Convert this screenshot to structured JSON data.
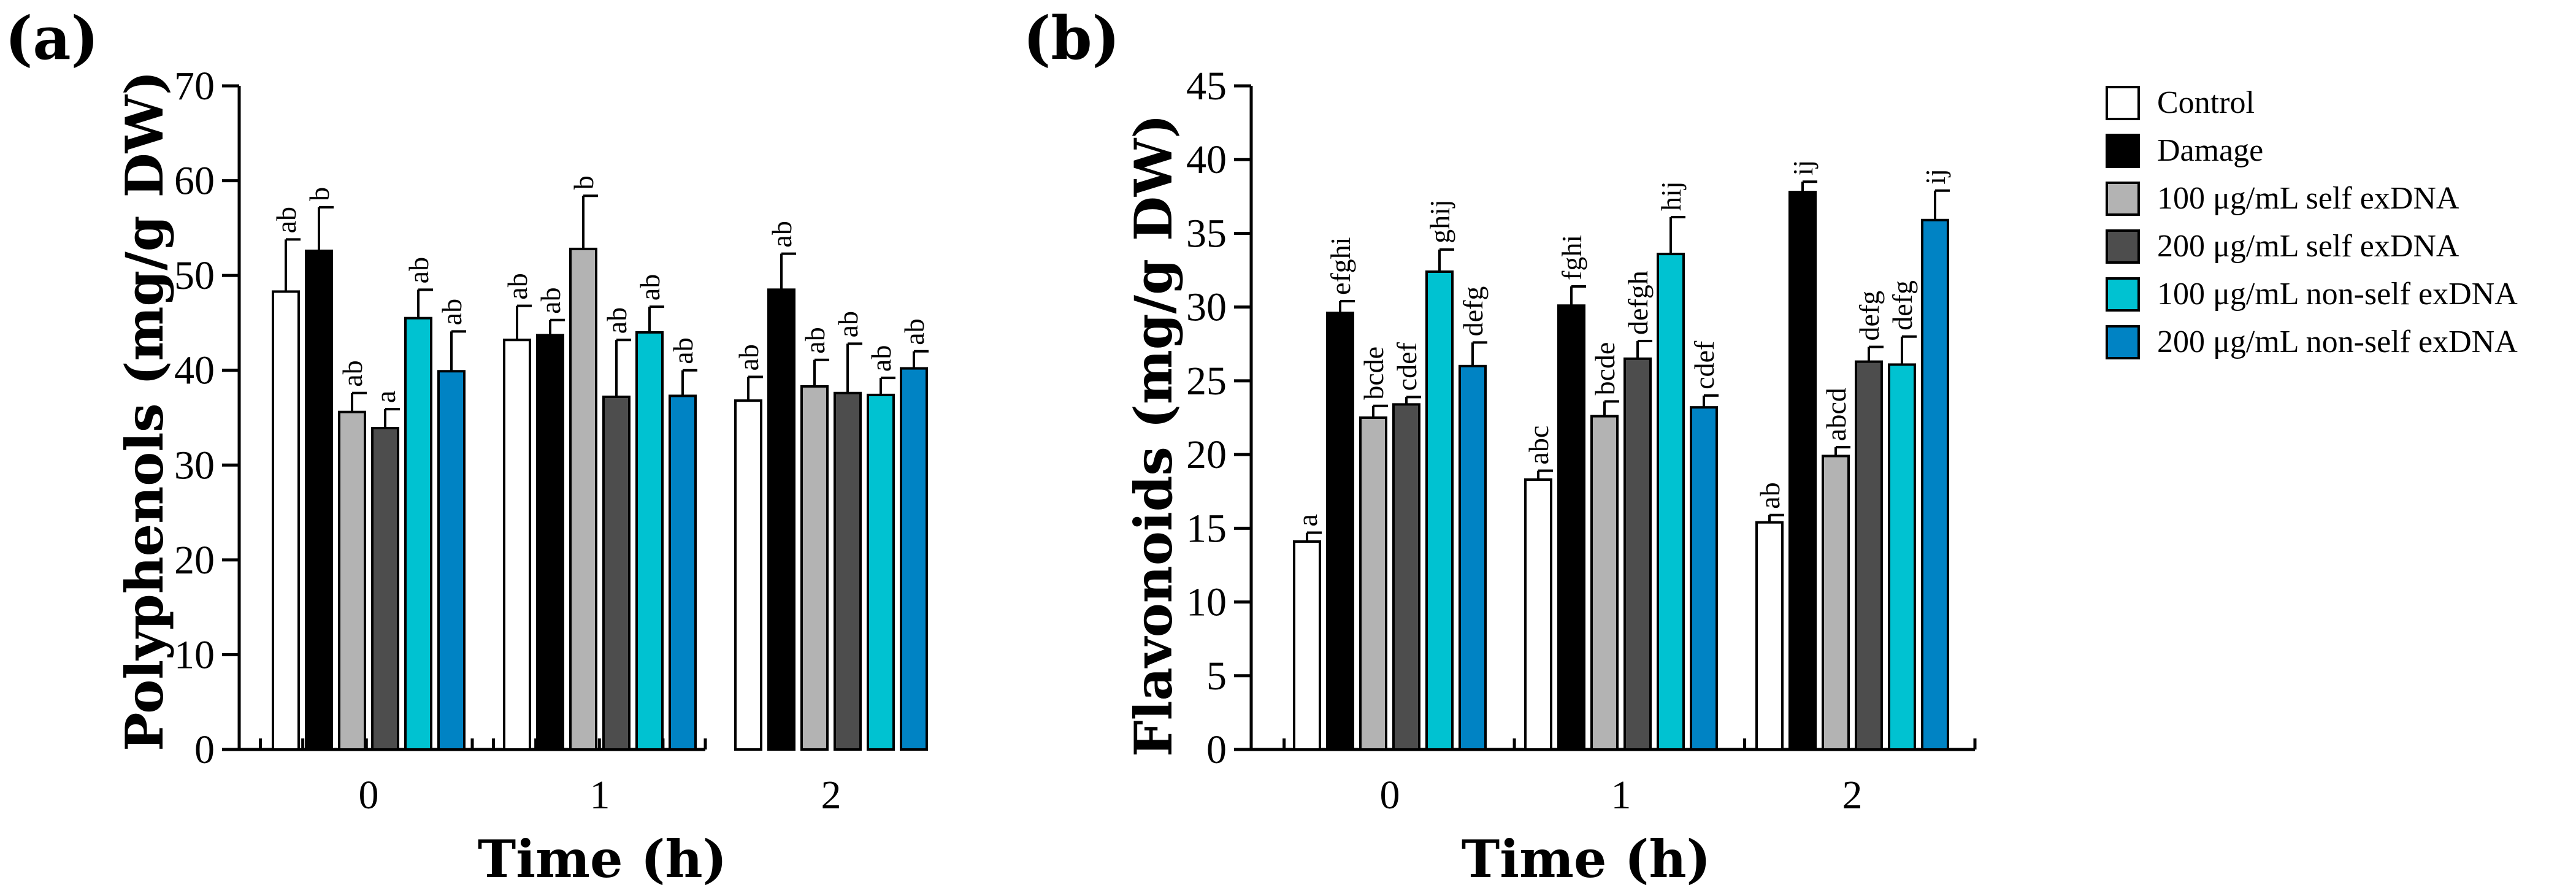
{
  "chart_data": [
    {
      "type": "bar",
      "panel_label": "(a)",
      "title": "",
      "xlabel": "Time (h)",
      "ylabel": "Polyphenols (mg/g DW)",
      "ylim": [
        0,
        70
      ],
      "yticks": [
        0,
        10,
        20,
        30,
        40,
        50,
        60,
        70
      ],
      "categories": [
        "0",
        "1",
        "2"
      ],
      "series": [
        {
          "name": "Control",
          "values": [
            48.3,
            43.2,
            36.8
          ],
          "errors": [
            5.5,
            3.6,
            2.5
          ],
          "labels": [
            "ab",
            "ab",
            "ab"
          ]
        },
        {
          "name": "Damage",
          "values": [
            52.6,
            43.7,
            48.5
          ],
          "errors": [
            4.6,
            1.6,
            3.8
          ],
          "labels": [
            "b",
            "ab",
            "ab"
          ]
        },
        {
          "name": "100 μg/mL self exDNA",
          "values": [
            35.6,
            52.8,
            38.3
          ],
          "errors": [
            2.0,
            5.6,
            2.8
          ],
          "labels": [
            "ab",
            "b",
            "ab"
          ]
        },
        {
          "name": "200 μg/mL self exDNA",
          "values": [
            33.9,
            37.2,
            37.6
          ],
          "errors": [
            2.0,
            6.0,
            5.2
          ],
          "labels": [
            "a",
            "ab",
            "ab"
          ]
        },
        {
          "name": "100 μg/mL non-self exDNA",
          "values": [
            45.5,
            44.0,
            37.4
          ],
          "errors": [
            3.0,
            2.7,
            1.8
          ],
          "labels": [
            "ab",
            "ab",
            "ab"
          ]
        },
        {
          "name": "200 μg/mL non-self  exDNA",
          "values": [
            39.9,
            37.3,
            40.2
          ],
          "errors": [
            4.2,
            2.7,
            1.8
          ],
          "labels": [
            "ab",
            "ab",
            "ab"
          ]
        }
      ]
    },
    {
      "type": "bar",
      "panel_label": "(b)",
      "title": "",
      "xlabel": "Time (h)",
      "ylabel": "Flavonoids (mg/g DW)",
      "ylim": [
        0,
        45
      ],
      "yticks": [
        0,
        5,
        10,
        15,
        20,
        25,
        30,
        35,
        40,
        45
      ],
      "categories": [
        "0",
        "1",
        "2"
      ],
      "series": [
        {
          "name": "Control",
          "values": [
            14.1,
            18.3,
            15.4
          ],
          "errors": [
            0.6,
            0.6,
            0.5
          ],
          "labels": [
            "a",
            "abc",
            "ab"
          ]
        },
        {
          "name": "Damage",
          "values": [
            29.6,
            30.1,
            37.8
          ],
          "errors": [
            0.8,
            1.3,
            0.7
          ],
          "labels": [
            "efghi",
            "fghi",
            "ij"
          ]
        },
        {
          "name": "100 μg/mL self exDNA",
          "values": [
            22.5,
            22.6,
            19.9
          ],
          "errors": [
            0.8,
            1.0,
            0.6
          ],
          "labels": [
            "bcde",
            "bcde",
            "abcd"
          ]
        },
        {
          "name": "200 μg/mL self exDNA",
          "values": [
            23.4,
            26.5,
            26.3
          ],
          "errors": [
            0.5,
            1.2,
            1.0
          ],
          "labels": [
            "cdef",
            "defgh",
            "defg"
          ]
        },
        {
          "name": "100 μg/mL non-self exDNA",
          "values": [
            32.4,
            33.6,
            26.1
          ],
          "errors": [
            1.5,
            2.5,
            1.9
          ],
          "labels": [
            "ghij",
            "hij",
            "defg"
          ]
        },
        {
          "name": "200 μg/mL non-self  exDNA",
          "values": [
            26.0,
            23.2,
            35.9
          ],
          "errors": [
            1.6,
            0.8,
            2.0
          ],
          "labels": [
            "defg",
            "cdef",
            "ij"
          ]
        }
      ]
    }
  ],
  "legend": {
    "placement": "right",
    "entries": [
      {
        "label": "Control",
        "color": "#ffffff"
      },
      {
        "label": "Damage",
        "color": "#000000"
      },
      {
        "label": "100 μg/mL self exDNA",
        "color": "#b3b3b3"
      },
      {
        "label": "200 μg/mL self exDNA",
        "color": "#4d4d4d"
      },
      {
        "label": "100 μg/mL non-self exDNA",
        "color": "#00c2d1"
      },
      {
        "label": "200 μg/mL non-self  exDNA",
        "color": "#0083c4"
      }
    ]
  }
}
